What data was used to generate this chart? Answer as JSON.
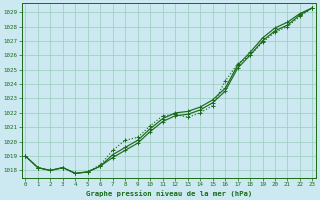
{
  "title": "Graphe pression niveau de la mer (hPa)",
  "background_color": "#cce8f0",
  "plot_bg_color": "#cce8f0",
  "grid_color": "#99ccbb",
  "line_color": "#1a6b1a",
  "x_ticks": [
    0,
    1,
    2,
    3,
    4,
    5,
    6,
    7,
    8,
    9,
    10,
    11,
    12,
    13,
    14,
    15,
    16,
    17,
    18,
    19,
    20,
    21,
    22,
    23
  ],
  "xlim": [
    -0.3,
    23.3
  ],
  "ylim": [
    1017.5,
    1029.6
  ],
  "y_ticks": [
    1018,
    1019,
    1020,
    1021,
    1022,
    1023,
    1024,
    1025,
    1026,
    1027,
    1028,
    1029
  ],
  "line1_solid_upper": [
    1019.0,
    1018.2,
    1018.0,
    1018.2,
    1017.8,
    1017.9,
    1018.3,
    1019.0,
    1019.5,
    1020.0,
    1020.8,
    1021.5,
    1021.9,
    1022.0,
    1022.2,
    1022.8,
    1023.6,
    1025.2,
    1026.1,
    1027.1,
    1027.8,
    1028.2,
    1028.8,
    1029.3
  ],
  "line2_dotted": [
    1019.0,
    1018.2,
    1018.0,
    1018.2,
    1017.8,
    1017.9,
    1018.5,
    1019.3,
    1020.1,
    1020.3,
    1021.1,
    1021.8,
    1021.9,
    1021.7,
    1022.0,
    1022.5,
    1024.2,
    1025.3,
    1025.9,
    1026.8,
    1027.5,
    1027.9,
    1028.6,
    1029.3
  ],
  "line3_solid_lower": [
    1019.0,
    1018.2,
    1018.0,
    1018.2,
    1017.8,
    1017.9,
    1018.3,
    1019.0,
    1019.5,
    1020.0,
    1020.8,
    1021.5,
    1021.9,
    1022.0,
    1022.2,
    1022.8,
    1023.6,
    1025.2,
    1026.1,
    1027.1,
    1027.8,
    1028.2,
    1028.8,
    1029.3
  ]
}
